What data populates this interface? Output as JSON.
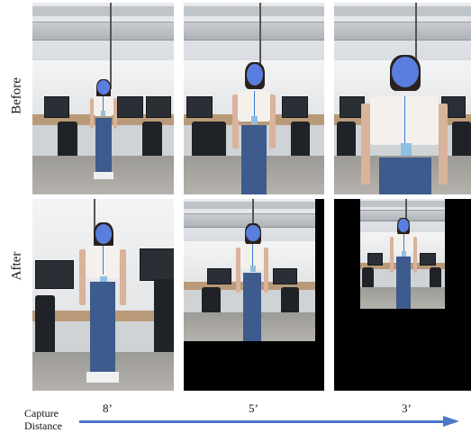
{
  "row_labels": {
    "before": "Before",
    "after": "After"
  },
  "axis": {
    "label": "Capture Distance",
    "ticks": [
      "8’",
      "5’",
      "3’"
    ],
    "arrow_color": "#4a78c8"
  },
  "colors": {
    "face_blur": "#5a7ee0",
    "background": "#ffffff",
    "pad": "#000000"
  }
}
